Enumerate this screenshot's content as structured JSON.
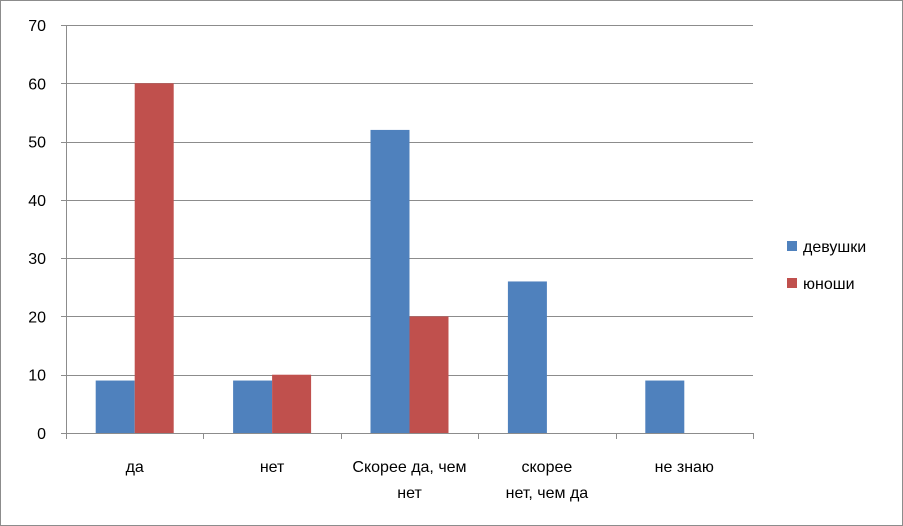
{
  "chart_data": {
    "type": "bar",
    "categories": [
      [
        "да"
      ],
      [
        "нет"
      ],
      [
        "Скорее да, чем",
        "нет"
      ],
      [
        "скорее",
        "нет, чем да"
      ],
      [
        "не знаю"
      ]
    ],
    "series": [
      {
        "name": "девушки",
        "color": "#4F81BD",
        "values": [
          9,
          9,
          52,
          26,
          9
        ]
      },
      {
        "name": "юноши",
        "color": "#C0504D",
        "values": [
          60,
          10,
          20,
          0,
          0
        ]
      }
    ],
    "ylim": [
      0,
      70
    ],
    "yticks": [
      0,
      10,
      20,
      30,
      40,
      50,
      60,
      70
    ],
    "grid": true,
    "legend": "right"
  }
}
